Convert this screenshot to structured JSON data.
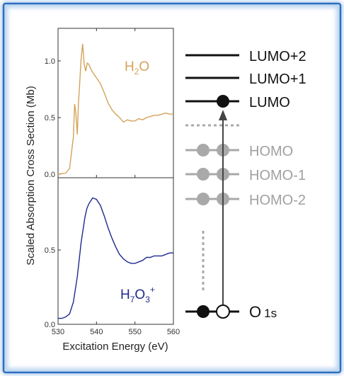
{
  "colors": {
    "h2o": "#d4a35a",
    "h7o3": "#1f2a8c",
    "occupied_faded": "#a9a9a9",
    "text_faded": "#a0a0a0",
    "border_outer": "#2f6fc0",
    "border_glow": "#bcd6f2"
  },
  "axes": {
    "ylabel": "Scaled Absorption Cross Section (Mb)",
    "xlabel": "Excitation Energy (eV)",
    "x_ticks": [
      "530",
      "540",
      "550",
      "560"
    ],
    "top_y_ticks": [
      "1.0",
      "0.5",
      "0.0"
    ],
    "bottom_y_ticks": [
      "0.5",
      "0.0"
    ]
  },
  "labels": {
    "h2o_main": "H",
    "h2o_sub": "2",
    "h2o_end": "O",
    "h7o3_h": "H",
    "h7o3_sub1": "7",
    "h7o3_o": "O",
    "h7o3_sub2": "3",
    "h7o3_sup": "+"
  },
  "levels": {
    "lumo2": "LUMO+2",
    "lumo1": "LUMO+1",
    "lumo": "LUMO",
    "homo": "HOMO",
    "homo1": "HOMO-1",
    "homo2": "HOMO-2",
    "o1s_main": "O",
    "o1s_sub": "1s"
  },
  "chart_data": [
    {
      "type": "line",
      "xlim": [
        530,
        560
      ],
      "ylim": [
        0,
        1.2
      ],
      "series": [
        {
          "name": "H2O",
          "x": [
            530,
            532,
            533,
            534,
            534.3,
            534.6,
            535,
            535.3,
            535.6,
            536,
            536.4,
            536.8,
            537.2,
            537.6,
            538,
            538.5,
            539,
            540,
            541,
            542,
            543,
            544,
            545,
            546,
            547,
            548,
            549,
            550,
            551,
            552,
            553,
            554,
            555,
            556,
            557,
            558,
            559,
            560
          ],
          "y": [
            0.0,
            0.01,
            0.05,
            0.33,
            0.62,
            0.55,
            0.35,
            0.62,
            0.78,
            1.02,
            1.15,
            0.97,
            0.91,
            0.98,
            0.97,
            0.93,
            0.9,
            0.85,
            0.8,
            0.72,
            0.63,
            0.57,
            0.53,
            0.5,
            0.46,
            0.48,
            0.47,
            0.47,
            0.49,
            0.48,
            0.5,
            0.51,
            0.52,
            0.52,
            0.53,
            0.54,
            0.53,
            0.53
          ]
        }
      ]
    },
    {
      "type": "line",
      "xlim": [
        530,
        560
      ],
      "ylim": [
        0,
        0.9
      ],
      "series": [
        {
          "name": "H7O3+",
          "x": [
            530,
            531,
            532,
            533,
            534,
            535,
            536,
            537,
            537.5,
            538,
            539,
            540,
            541,
            542,
            543,
            544,
            545,
            546,
            547,
            548,
            549,
            550,
            551,
            552,
            553,
            554,
            555,
            556,
            557,
            558,
            559,
            560
          ],
          "y": [
            0.04,
            0.04,
            0.05,
            0.07,
            0.15,
            0.32,
            0.55,
            0.72,
            0.78,
            0.81,
            0.85,
            0.84,
            0.8,
            0.73,
            0.65,
            0.58,
            0.52,
            0.47,
            0.44,
            0.42,
            0.41,
            0.41,
            0.42,
            0.43,
            0.45,
            0.45,
            0.46,
            0.46,
            0.46,
            0.47,
            0.48,
            0.48
          ]
        }
      ]
    }
  ]
}
